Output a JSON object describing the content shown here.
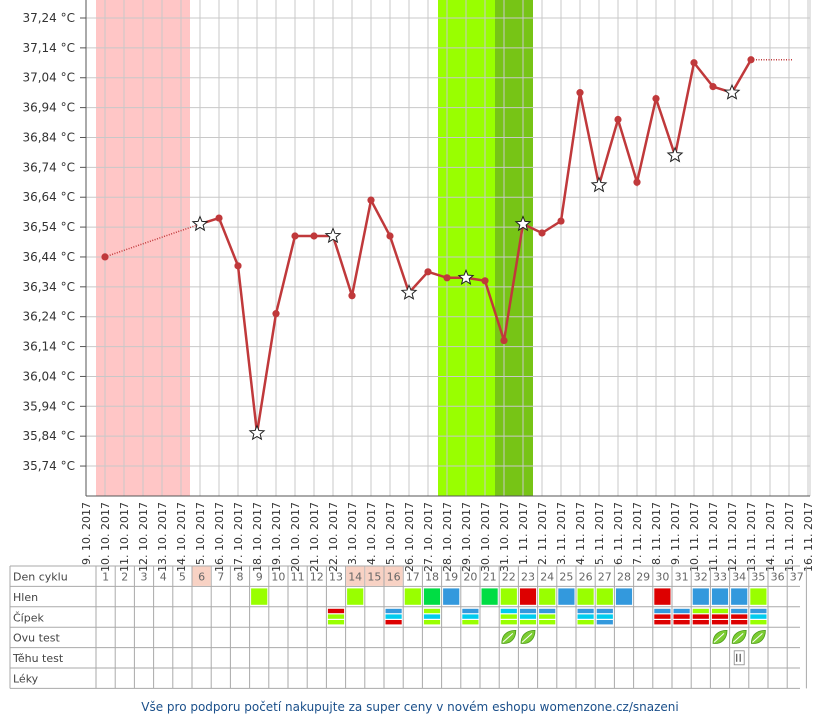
{
  "chart_data": {
    "type": "line",
    "y_unit": "°C",
    "y_ticks": [
      "37,24 °C",
      "37,14 °C",
      "37,04 °C",
      "36,94 °C",
      "36,84 °C",
      "36,74 °C",
      "36,64 °C",
      "36,54 °C",
      "36,44 °C",
      "36,34 °C",
      "36,24 °C",
      "36,14 °C",
      "36,04 °C",
      "35,94 °C",
      "35,84 °C",
      "35,74 °C"
    ],
    "ylim": [
      35.64,
      37.3
    ],
    "dates": [
      "9. 10. 2017",
      "10. 10. 2017",
      "11. 10. 2017",
      "12. 10. 2017",
      "13. 10. 2017",
      "14. 10. 2017",
      "15. 10. 2017",
      "16. 10. 2017",
      "17. 10. 2017",
      "18. 10. 2017",
      "19. 10. 2017",
      "20. 10. 2017",
      "21. 10. 2017",
      "22. 10. 2017",
      "23. 10. 2017",
      "24. 10. 2017",
      "25. 10. 2017",
      "26. 10. 2017",
      "27. 10. 2017",
      "28. 10. 2017",
      "29. 10. 2017",
      "30. 10. 2017",
      "31. 10. 2017",
      "1. 11. 2017",
      "2. 11. 2017",
      "3. 11. 2017",
      "4. 11. 2017",
      "5. 11. 2017",
      "6. 11. 2017",
      "7. 11. 2017",
      "8. 11. 2017",
      "9. 11. 2017",
      "10. 11. 2017",
      "11. 11. 2017",
      "12. 11. 2017",
      "13. 11. 2017",
      "14. 11. 2017",
      "15. 11. 2017",
      "16. 11. 2017"
    ],
    "temperatures": [
      null,
      36.43,
      null,
      null,
      null,
      null,
      36.54,
      36.56,
      36.4,
      35.84,
      36.24,
      36.5,
      36.5,
      36.5,
      36.3,
      36.62,
      36.5,
      36.31,
      36.38,
      36.36,
      36.36,
      36.35,
      36.15,
      36.54,
      36.51,
      36.55,
      36.98,
      36.67,
      36.89,
      36.68,
      36.96,
      36.77,
      37.08,
      37.0,
      36.98,
      37.09,
      null,
      null,
      null
    ],
    "star_marked_days": [
      6,
      9,
      13,
      17,
      20,
      23,
      27,
      31,
      34
    ],
    "extension_value": 37.09,
    "period_band": {
      "from": 1,
      "to": 5,
      "color": "#ffc6c6"
    },
    "fertile_band": {
      "from": 19,
      "to": 21,
      "color": "#99ff00"
    },
    "ovulation_band": {
      "from": 22,
      "to": 22,
      "color": "#77c416"
    },
    "line_color": "#c0393b"
  },
  "table": {
    "row_labels": [
      "Den cyklu",
      "Hlen",
      "Čípek",
      "Ovu test",
      "Těhu test",
      "Léky"
    ],
    "cycle_days": [
      "1",
      "2",
      "3",
      "4",
      "5",
      "6",
      "7",
      "8",
      "9",
      "10",
      "11",
      "12",
      "13",
      "14",
      "15",
      "16",
      "17",
      "18",
      "19",
      "20",
      "21",
      "22",
      "23",
      "24",
      "25",
      "26",
      "27",
      "28",
      "29",
      "30",
      "31",
      "32",
      "33",
      "34",
      "35",
      "36",
      "37"
    ],
    "highlight_days": [
      6,
      14,
      15,
      16
    ],
    "hlen": [
      {
        "day": 9,
        "color": "#99ff00"
      },
      {
        "day": 14,
        "color": "#99ff00"
      },
      {
        "day": 17,
        "color": "#99ff00"
      },
      {
        "day": 18,
        "color": "#00dd44"
      },
      {
        "day": 19,
        "color": "#3399dd"
      },
      {
        "day": 21,
        "color": "#00dd44"
      },
      {
        "day": 22,
        "color": "#99ff00"
      },
      {
        "day": 23,
        "color": "#dd0000"
      },
      {
        "day": 24,
        "color": "#99ff00"
      },
      {
        "day": 25,
        "color": "#3399dd"
      },
      {
        "day": 26,
        "color": "#99ff00"
      },
      {
        "day": 27,
        "color": "#99ff00"
      },
      {
        "day": 28,
        "color": "#3399dd"
      },
      {
        "day": 30,
        "color": "#dd0000"
      },
      {
        "day": 32,
        "color": "#3399dd"
      },
      {
        "day": 33,
        "color": "#3399dd"
      },
      {
        "day": 34,
        "color": "#3399dd"
      },
      {
        "day": 35,
        "color": "#99ff00"
      }
    ],
    "cipek": [
      {
        "day": 13,
        "colors": [
          "#dd0000",
          "#99ff00",
          "#99ff00"
        ]
      },
      {
        "day": 16,
        "colors": [
          "#3399dd",
          "#00ccee",
          "#dd0000"
        ]
      },
      {
        "day": 18,
        "colors": [
          "#99ff00",
          "#00ccee",
          "#99ff00"
        ]
      },
      {
        "day": 20,
        "colors": [
          "#3399dd",
          "#00ccee",
          "#99ff00"
        ]
      },
      {
        "day": 22,
        "colors": [
          "#00ccee",
          "#99ff00",
          "#99ff00"
        ]
      },
      {
        "day": 23,
        "colors": [
          "#3399dd",
          "#00ccee",
          "#99ff00"
        ]
      },
      {
        "day": 24,
        "colors": [
          "#3399dd",
          "#99ff00",
          "#99ff00"
        ]
      },
      {
        "day": 26,
        "colors": [
          "#3399dd",
          "#00ccee",
          "#99ff00"
        ]
      },
      {
        "day": 27,
        "colors": [
          "#3399dd",
          "#00ccee",
          "#3399dd"
        ]
      },
      {
        "day": 30,
        "colors": [
          "#3399dd",
          "#dd0000",
          "#dd0000"
        ]
      },
      {
        "day": 31,
        "colors": [
          "#3399dd",
          "#dd0000",
          "#dd0000"
        ]
      },
      {
        "day": 32,
        "colors": [
          "#99ff00",
          "#dd0000",
          "#dd0000"
        ]
      },
      {
        "day": 33,
        "colors": [
          "#99ff00",
          "#dd0000",
          "#dd0000"
        ]
      },
      {
        "day": 34,
        "colors": [
          "#3399dd",
          "#dd0000",
          "#dd0000"
        ]
      },
      {
        "day": 35,
        "colors": [
          "#3399dd",
          "#00ccee",
          "#99ff00"
        ]
      }
    ],
    "ovu_test_days": [
      22,
      23,
      33,
      34,
      35
    ],
    "pregnancy_test_days": [
      34
    ],
    "leaf_icon": "leaf-icon",
    "test_icon": "pregnancy-test-icon"
  },
  "footer": {
    "text": "Vše pro podporu početí nakupujte za super ceny v novém eshopu womenzone.cz/snazeni"
  }
}
